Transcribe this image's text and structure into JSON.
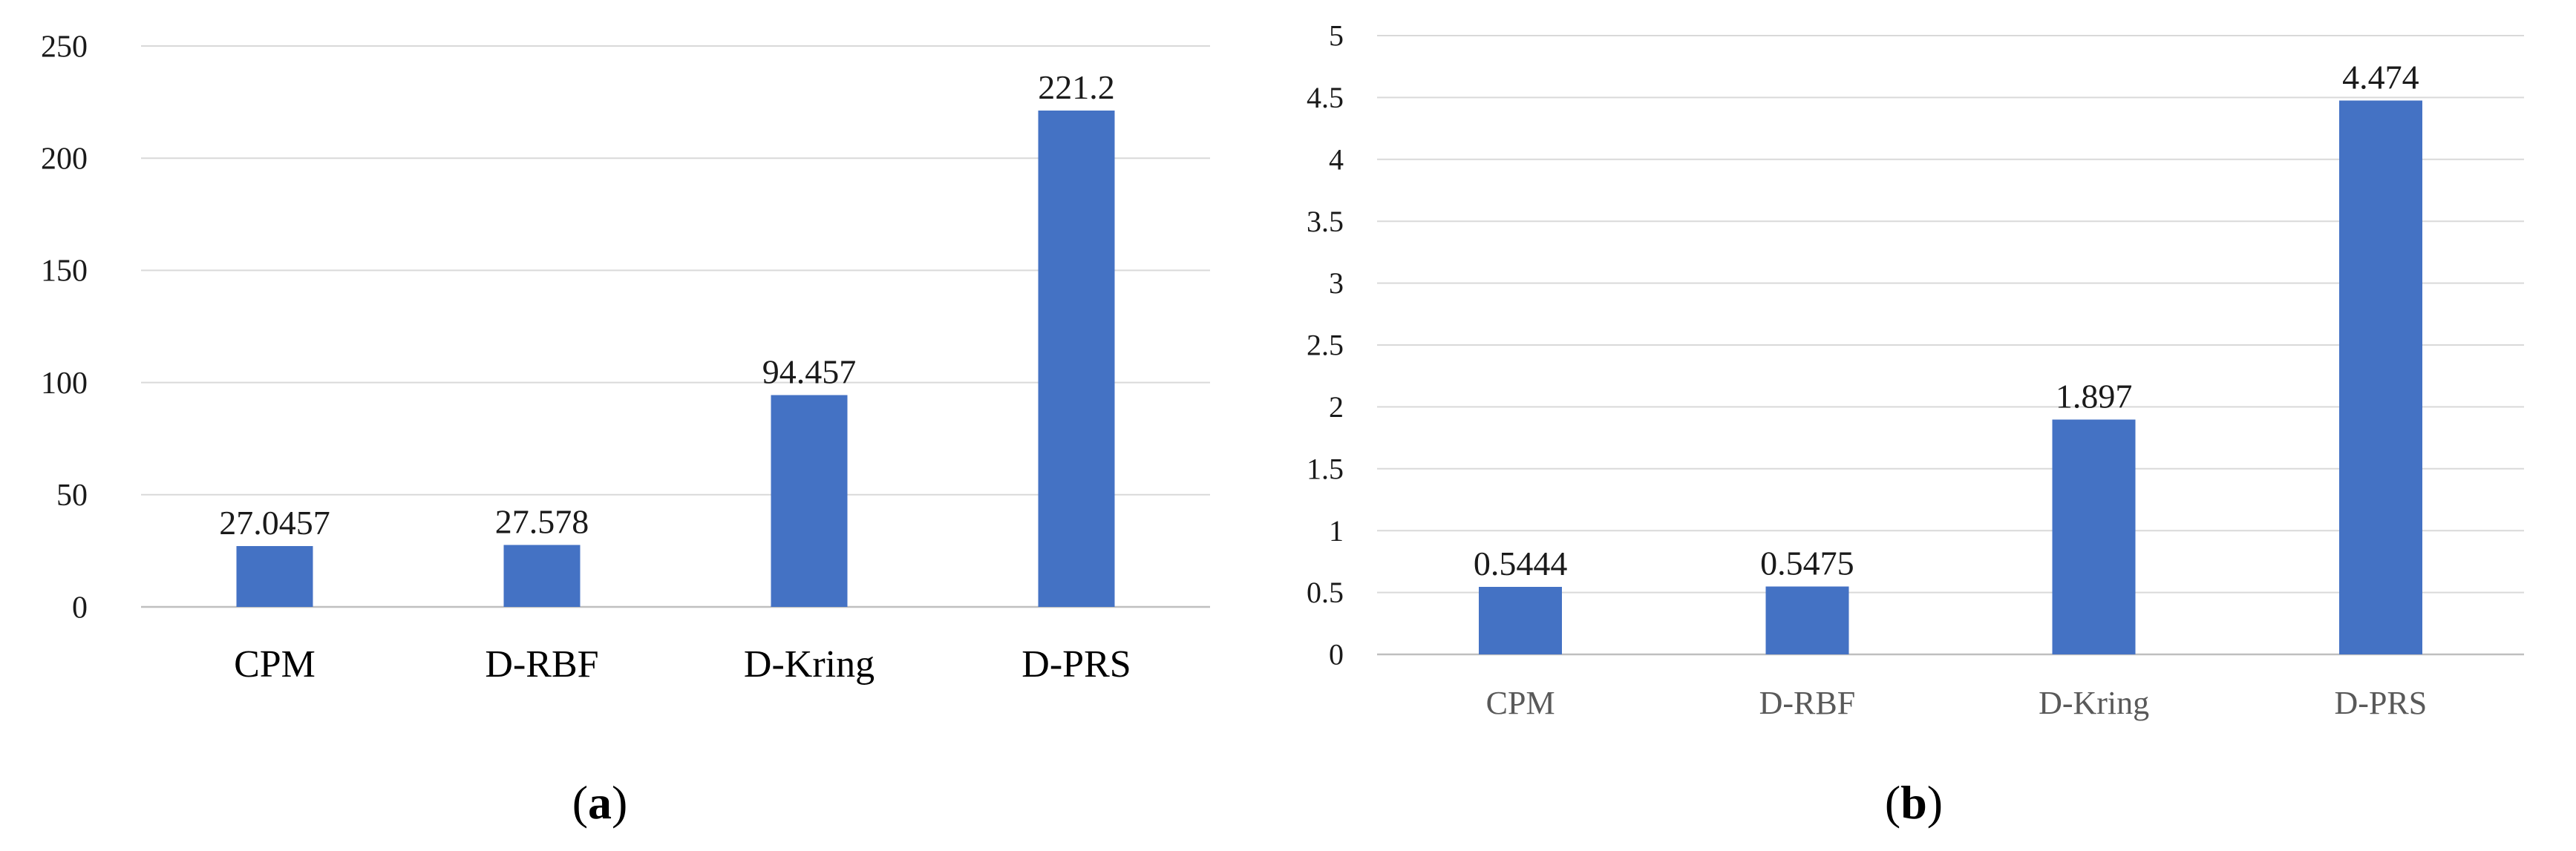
{
  "panels": [
    {
      "caption": {
        "open": "(",
        "letter": "a",
        "close": ")"
      },
      "chart_data": {
        "type": "bar",
        "categories": [
          "CPM",
          "D-RBF",
          "D-Kring",
          "D-PRS"
        ],
        "values": [
          27.0457,
          27.578,
          94.457,
          221.2
        ],
        "value_labels": [
          "27.0457",
          "27.578",
          "94.457",
          "221.2"
        ],
        "yticks": [
          "0",
          "50",
          "100",
          "150",
          "200",
          "250"
        ],
        "ylim": [
          0,
          250
        ],
        "title": "",
        "xlabel": "",
        "ylabel": "",
        "grid": true,
        "legend": "none",
        "bar_color": "#4472c4"
      }
    },
    {
      "caption": {
        "open": "(",
        "letter": "b",
        "close": ")"
      },
      "chart_data": {
        "type": "bar",
        "categories": [
          "CPM",
          "D-RBF",
          "D-Kring",
          "D-PRS"
        ],
        "values": [
          0.5444,
          0.5475,
          1.897,
          4.474
        ],
        "value_labels": [
          "0.5444",
          "0.5475",
          "1.897",
          "4.474"
        ],
        "yticks": [
          "0",
          "0.5",
          "1",
          "1.5",
          "2",
          "2.5",
          "3",
          "3.5",
          "4",
          "4.5",
          "5"
        ],
        "ylim": [
          0,
          5
        ],
        "title": "",
        "xlabel": "",
        "ylabel": "",
        "grid": true,
        "legend": "none",
        "bar_color": "#4472c4"
      }
    }
  ]
}
